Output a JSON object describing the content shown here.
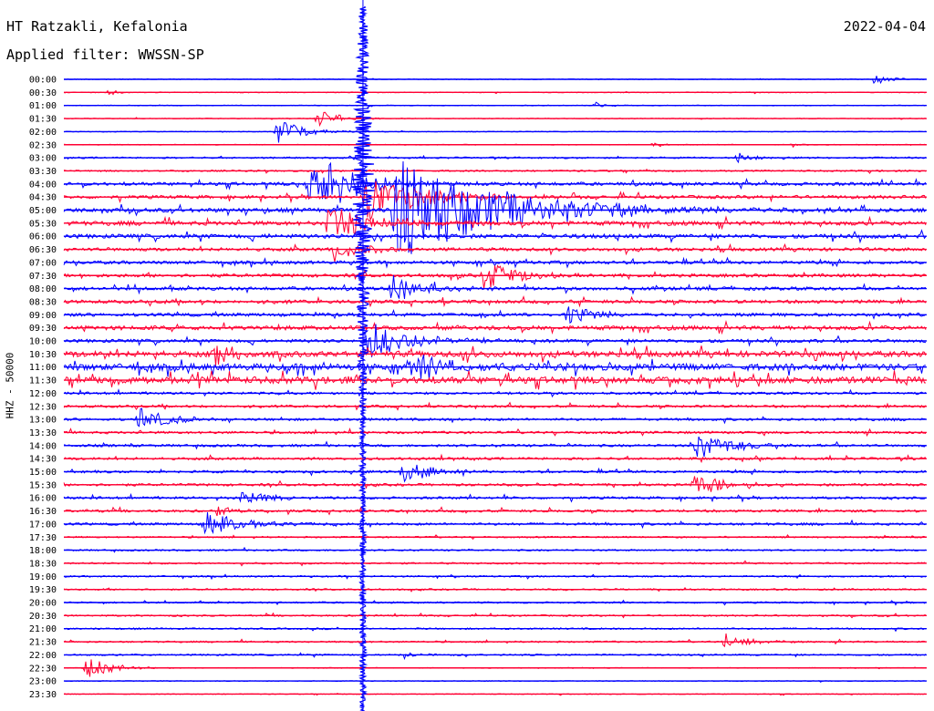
{
  "header": {
    "station": "HT Ratzakli, Kefalonia",
    "date": "2022-04-04",
    "filter_label": "Applied filter: WWSSN-SP"
  },
  "colors": {
    "even_trace": "#0000ff",
    "odd_trace": "#ff0033",
    "axis_text": "#000000"
  },
  "chart_data": {
    "type": "line",
    "title": "HT Ratzakli, Kefalonia",
    "channel_label": "HHZ - 50000",
    "interval_minutes": 30,
    "row_labels": [
      "00:00",
      "00:30",
      "01:00",
      "01:30",
      "02:00",
      "02:30",
      "03:00",
      "03:30",
      "04:00",
      "04:30",
      "05:00",
      "05:30",
      "06:00",
      "06:30",
      "07:00",
      "07:30",
      "08:00",
      "08:30",
      "09:00",
      "09:30",
      "10:00",
      "10:30",
      "11:00",
      "11:30",
      "12:00",
      "12:30",
      "13:00",
      "13:30",
      "14:00",
      "14:30",
      "15:00",
      "15:30",
      "16:00",
      "16:30",
      "17:00",
      "17:30",
      "18:00",
      "18:30",
      "19:00",
      "19:30",
      "20:00",
      "20:30",
      "21:00",
      "21:30",
      "22:00",
      "22:30",
      "23:00",
      "23:30"
    ],
    "row_colors": [
      "blue",
      "red"
    ],
    "row_noise_level": [
      1,
      1,
      1,
      1,
      1,
      1,
      2,
      2,
      4,
      4,
      5,
      5,
      5,
      4,
      4,
      4,
      4,
      4,
      4,
      5,
      4,
      7,
      8,
      8,
      3,
      3,
      3,
      3,
      3,
      3,
      3,
      3,
      3,
      3,
      3,
      2,
      2,
      2,
      2,
      2,
      2,
      2,
      2,
      2,
      2,
      1,
      1,
      1
    ],
    "events": [
      {
        "row": 0,
        "minute": 28.2,
        "amp": 1.0
      },
      {
        "row": 1,
        "minute": 1.6,
        "amp": 0.6
      },
      {
        "row": 2,
        "minute": 18.5,
        "amp": 0.7
      },
      {
        "row": 3,
        "minute": 8.8,
        "amp": 1.6
      },
      {
        "row": 4,
        "minute": 7.4,
        "amp": 2.0
      },
      {
        "row": 5,
        "minute": 20.5,
        "amp": 0.6
      },
      {
        "row": 5,
        "minute": 25.2,
        "amp": 0.6
      },
      {
        "row": 6,
        "minute": 23.4,
        "amp": 1.0
      },
      {
        "row": 8,
        "minute": 8.5,
        "amp": 3.5
      },
      {
        "row": 8,
        "minute": 9.0,
        "amp": 3.0
      },
      {
        "row": 9,
        "minute": 10.5,
        "amp": 4.0
      },
      {
        "row": 10,
        "minute": 11.5,
        "amp": 8.0
      },
      {
        "row": 11,
        "minute": 9.2,
        "amp": 3.0
      },
      {
        "row": 13,
        "minute": 9.4,
        "amp": 2.0
      },
      {
        "row": 15,
        "minute": 14.6,
        "amp": 2.5
      },
      {
        "row": 16,
        "minute": 11.4,
        "amp": 2.5
      },
      {
        "row": 18,
        "minute": 17.5,
        "amp": 2.0
      },
      {
        "row": 20,
        "minute": 10.6,
        "amp": 3.0
      },
      {
        "row": 21,
        "minute": 5.2,
        "amp": 2.0
      },
      {
        "row": 22,
        "minute": 12.1,
        "amp": 2.5
      },
      {
        "row": 26,
        "minute": 2.6,
        "amp": 2.0
      },
      {
        "row": 28,
        "minute": 22.0,
        "amp": 2.5
      },
      {
        "row": 30,
        "minute": 11.8,
        "amp": 2.0
      },
      {
        "row": 31,
        "minute": 21.9,
        "amp": 2.0
      },
      {
        "row": 32,
        "minute": 6.2,
        "amp": 1.8
      },
      {
        "row": 33,
        "minute": 5.3,
        "amp": 1.0
      },
      {
        "row": 34,
        "minute": 4.9,
        "amp": 2.5
      },
      {
        "row": 43,
        "minute": 23.0,
        "amp": 1.5
      },
      {
        "row": 44,
        "minute": 11.7,
        "amp": 1.0
      },
      {
        "row": 45,
        "minute": 0.8,
        "amp": 1.8
      }
    ],
    "large_quake": {
      "row": 8,
      "minute": 10.4,
      "span_rows": [
        0,
        47
      ]
    }
  }
}
